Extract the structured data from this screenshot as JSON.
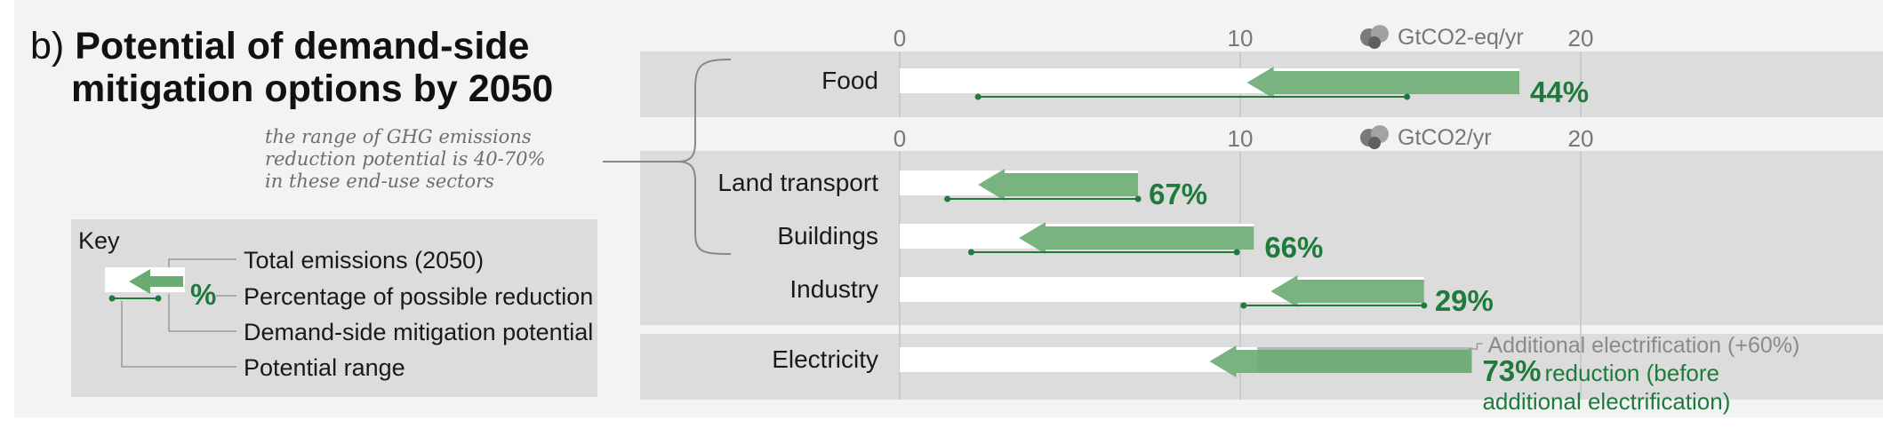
{
  "panel": {
    "prefix": "b)",
    "title_line1": "Potential of demand-side",
    "title_line2": "mitigation options by 2050",
    "annotation_lines": [
      "the range of GHG emissions",
      "reduction potential is 40-70%",
      "in these end-use sectors"
    ]
  },
  "key": {
    "title": "Key",
    "percent_symbol": "%",
    "items": [
      "Total emissions (2050)",
      "Percentage of possible reduction",
      "Demand-side mitigation potential",
      "Potential range"
    ]
  },
  "colors": {
    "panel_bg": "#f3f3f3",
    "group_bg": "#dcdcdc",
    "total_bar": "#ffffff",
    "potential_arrow": "#6aab72",
    "range_line": "#1f7a3c",
    "percent_text": "#1f7a3c",
    "electrification_bar": "#a9a9a9"
  },
  "chart_data": {
    "type": "bar",
    "axes": [
      {
        "unit": "GtCO2-eq/yr",
        "ticks": [
          "0",
          "10",
          "20"
        ],
        "xlim": [
          0,
          26.5
        ],
        "icon": "cloud-icon"
      },
      {
        "unit": "GtCO2/yr",
        "ticks": [
          "0",
          "10",
          "20"
        ],
        "xlim": [
          0,
          26.5
        ],
        "icon": "cloud-icon"
      }
    ],
    "rows": [
      {
        "category": "Food",
        "axis": 0,
        "total": 18.2,
        "potential": 8.0,
        "percent": "44%",
        "range": [
          2.3,
          14.9
        ]
      },
      {
        "category": "Land transport",
        "axis": 1,
        "total": 7.0,
        "potential": 4.7,
        "percent": "67%",
        "range": [
          1.4,
          7.0
        ]
      },
      {
        "category": "Buildings",
        "axis": 1,
        "total": 10.4,
        "potential": 6.9,
        "percent": "66%",
        "range": [
          2.1,
          9.9
        ]
      },
      {
        "category": "Industry",
        "axis": 1,
        "total": 15.4,
        "potential": 4.5,
        "percent": "29%",
        "range": [
          10.1,
          15.4
        ]
      },
      {
        "category": "Electricity",
        "axis": 1,
        "total": 10.5,
        "additional": 6.3,
        "potential": 7.7,
        "percent": "73%",
        "range": null
      }
    ],
    "electricity_notes": {
      "additional": "Additional electrification (+60%)",
      "reduction_line1": " reduction (before",
      "reduction_line2": "additional electrification)"
    },
    "grid": true
  }
}
